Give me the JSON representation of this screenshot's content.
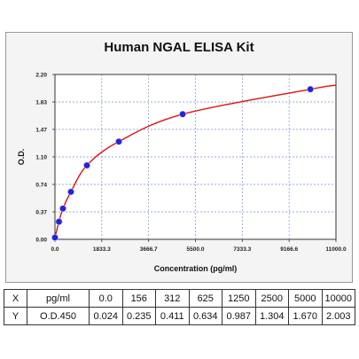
{
  "chart_data": {
    "type": "scatter",
    "title": "Human NGAL ELISA Kit",
    "xlabel": "Concentration (pg/ml)",
    "ylabel": "O.D.",
    "xlim": [
      0,
      11000
    ],
    "ylim": [
      0,
      2.2
    ],
    "x_ticks": [
      "0.0",
      "1833.3",
      "3666.7",
      "5500.0",
      "7333.3",
      "9166.6",
      "11000.0"
    ],
    "y_ticks": [
      "0.00",
      "0.37",
      "0.74",
      "1.10",
      "1.47",
      "1.83",
      "2.20"
    ],
    "grid": true,
    "series": [
      {
        "x": [
          0,
          156,
          312,
          625,
          1250,
          2500,
          5000,
          10000
        ],
        "y": [
          0.024,
          0.235,
          0.411,
          0.634,
          0.987,
          1.304,
          1.67,
          2.003
        ],
        "point_color": "#2222dd",
        "line_color": "#dd1111"
      }
    ]
  },
  "table": {
    "rows": [
      {
        "head": "X",
        "label": "pg/ml",
        "values": [
          "0.0",
          "156",
          "312",
          "625",
          "1250",
          "2500",
          "5000",
          "10000"
        ]
      },
      {
        "head": "Y",
        "label": "O.D.450",
        "values": [
          "0.024",
          "0.235",
          "0.411",
          "0.634",
          "0.987",
          "1.304",
          "1.670",
          "2.003"
        ]
      }
    ]
  }
}
